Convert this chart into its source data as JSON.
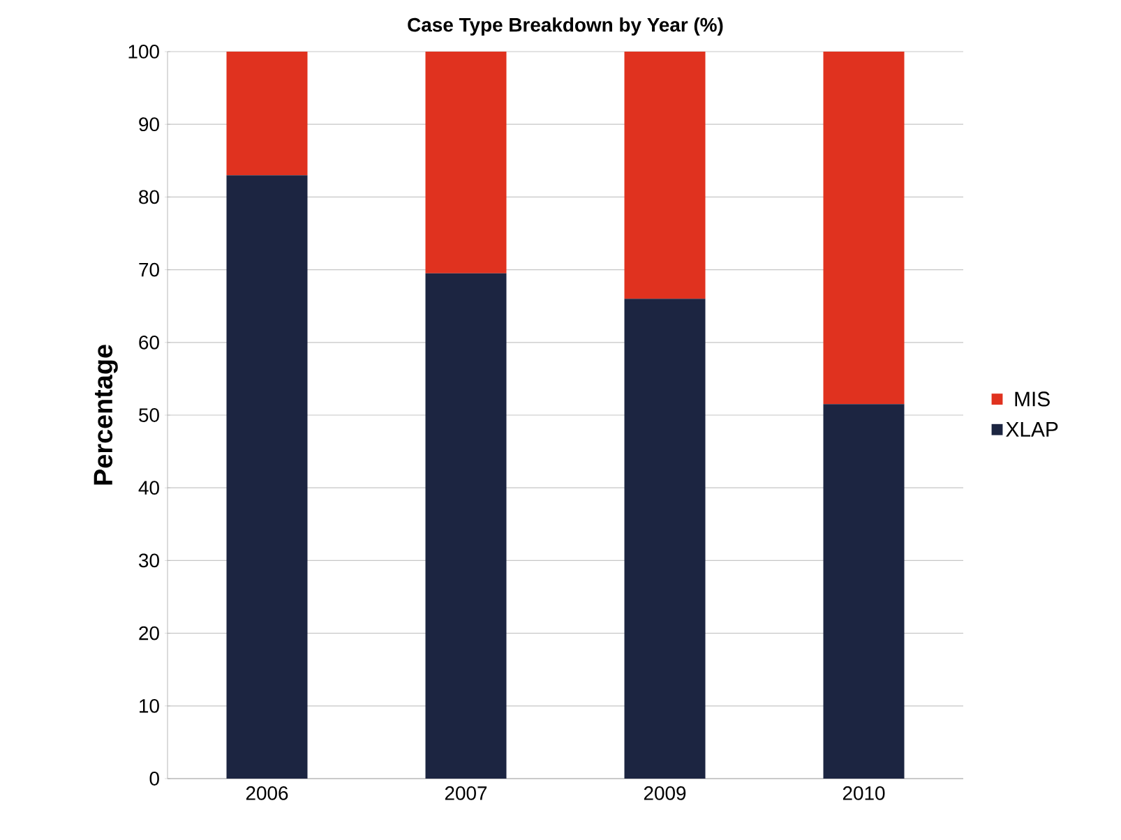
{
  "chart_data": {
    "type": "bar",
    "title": "Case Type Breakdown by Year (%)",
    "ylabel": "Percentage",
    "categories": [
      "2006",
      "2007",
      "2009",
      "2010"
    ],
    "series": [
      {
        "name": "XLAP",
        "color": "#1c2541",
        "values": [
          83,
          69.5,
          66,
          51.5
        ]
      },
      {
        "name": "MIS",
        "color": "#e0321f",
        "values": [
          17,
          30.5,
          34,
          48.5
        ]
      }
    ],
    "stacked": true,
    "ylim": [
      0,
      100
    ],
    "yticks": [
      0,
      10,
      20,
      30,
      40,
      50,
      60,
      70,
      80,
      90,
      100
    ],
    "grid": "y",
    "legend": "right"
  }
}
